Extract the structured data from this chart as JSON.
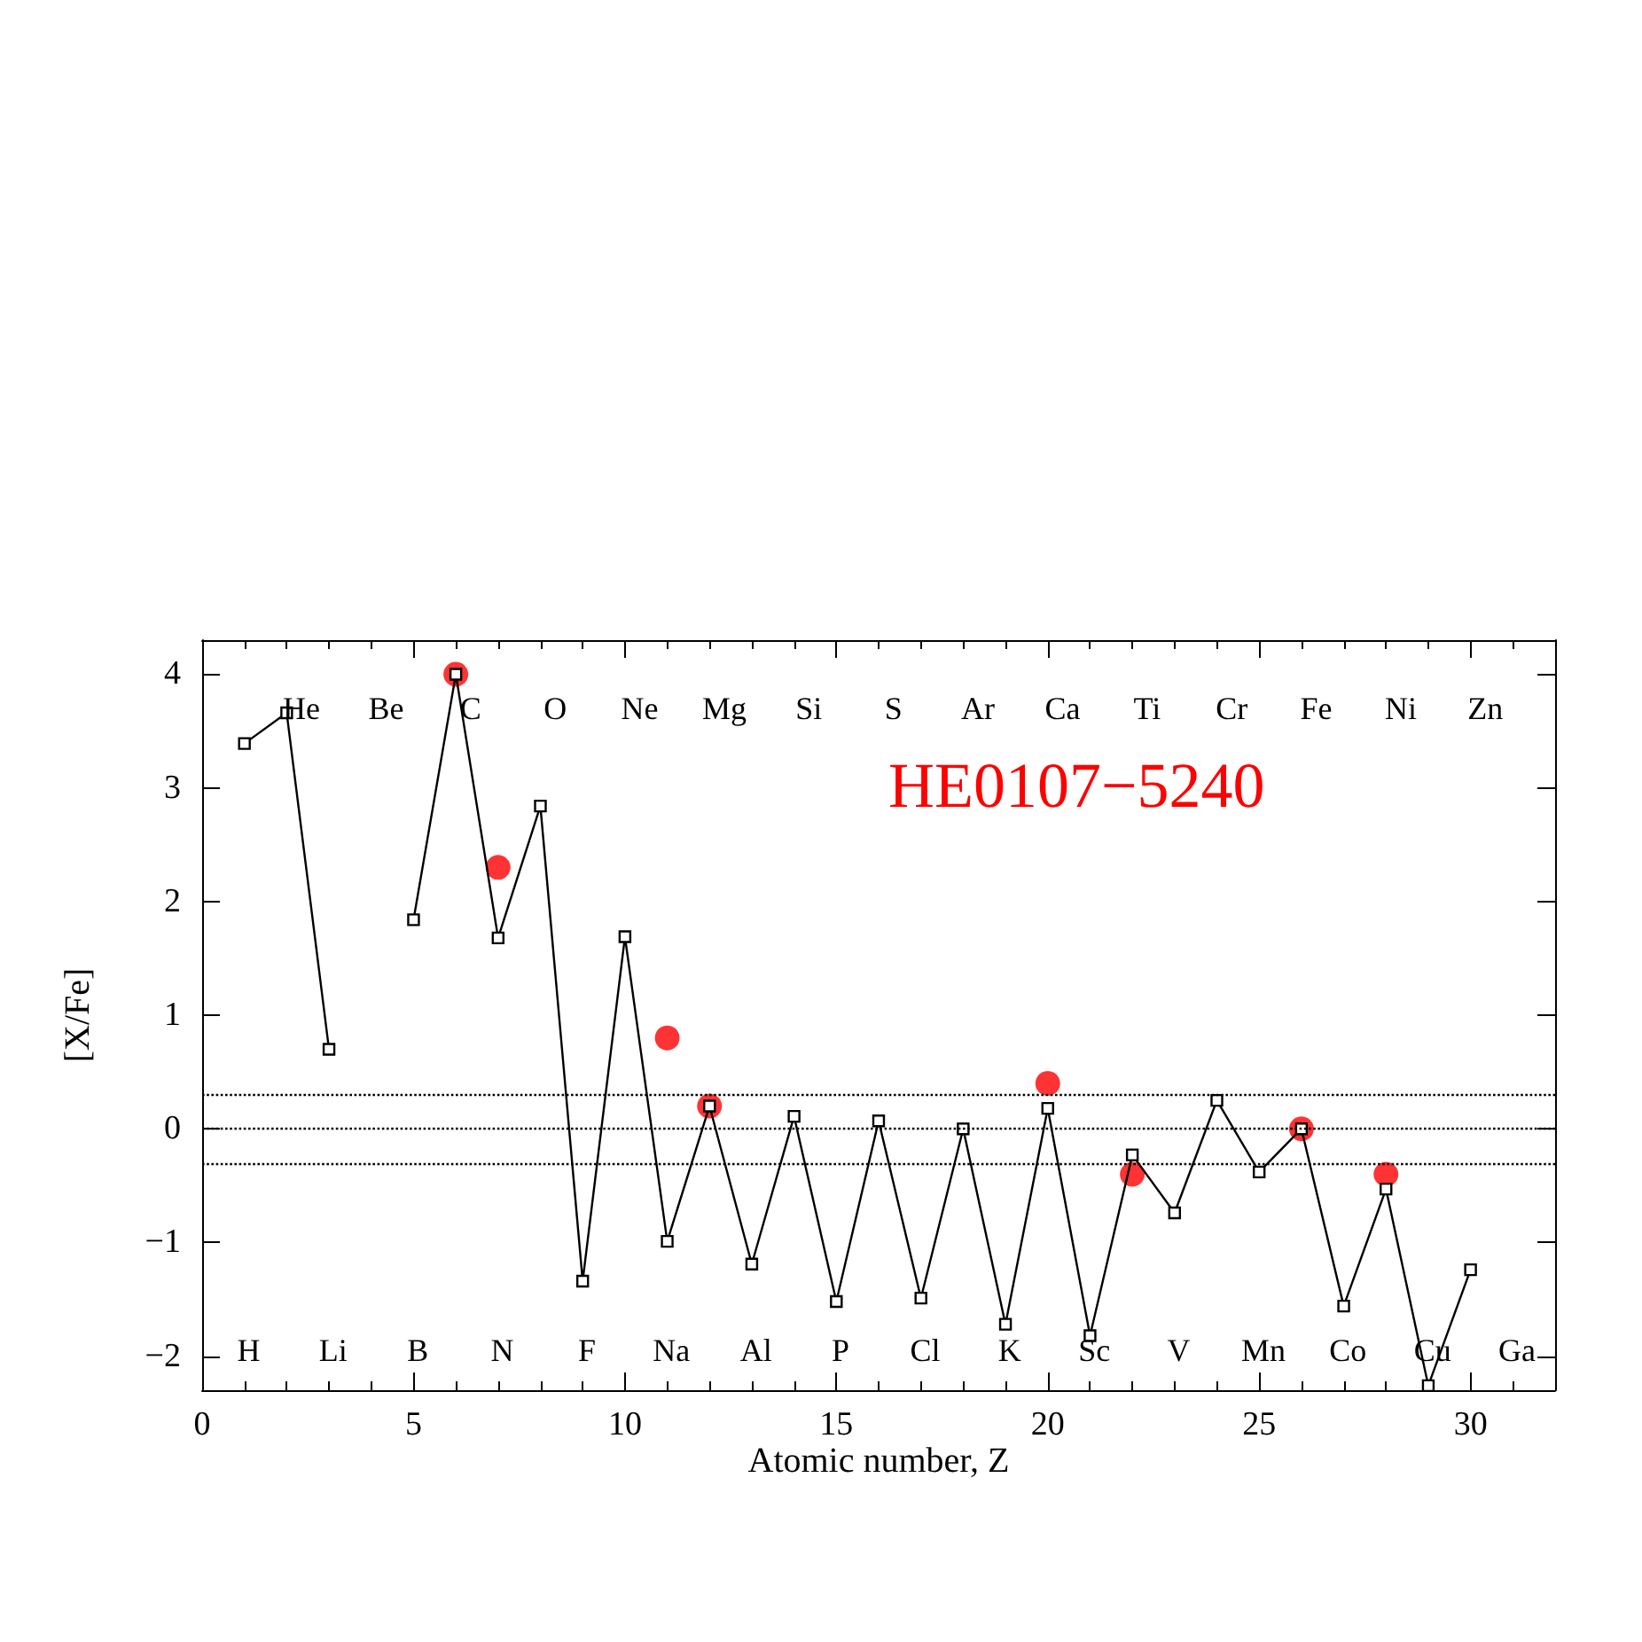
{
  "chart_data": {
    "type": "line",
    "title": "HE0107−5240",
    "xlabel": "Atomic number, Z",
    "ylabel": "[X/Fe]",
    "xlim": [
      0,
      32
    ],
    "xticks": [
      0,
      5,
      10,
      15,
      20,
      25,
      30
    ],
    "ylim": [
      -2.3,
      4.3
    ],
    "yticks": [
      -2,
      -1,
      0,
      1,
      2,
      3,
      4
    ],
    "grid": false,
    "series": [
      {
        "color": "#000000",
        "marker": "square",
        "line_style": "solid",
        "x": [
          1,
          2,
          3,
          4,
          5,
          6,
          7,
          8,
          9,
          10,
          11,
          12,
          13,
          14,
          15,
          16,
          17,
          18,
          19,
          20,
          21,
          22,
          23,
          24,
          25,
          26,
          27,
          28,
          29,
          30
        ],
        "values": [
          3.39,
          3.66,
          0.7,
          null,
          1.84,
          4.0,
          1.68,
          2.84,
          -1.34,
          1.69,
          -0.99,
          0.2,
          -1.19,
          0.11,
          -1.52,
          0.07,
          -1.49,
          0.0,
          -1.72,
          0.18,
          -1.82,
          -0.23,
          -0.74,
          0.25,
          -0.38,
          0.0,
          -1.56,
          -0.53,
          -2.26,
          -1.24
        ]
      },
      {
        "type": "scatter",
        "color": "#ff0000",
        "marker": "circle",
        "x": [
          6,
          7,
          11,
          12,
          20,
          22,
          26,
          28
        ],
        "values": [
          4.0,
          2.3,
          0.8,
          0.2,
          0.4,
          -0.4,
          0.0,
          -0.4
        ]
      }
    ],
    "ref_lines": [
      {
        "axis": "y",
        "value": 0.3,
        "line_style": "dotted"
      },
      {
        "axis": "y",
        "value": 0,
        "line_style": "dotted"
      },
      {
        "axis": "y",
        "value": -0.3,
        "line_style": "dotted"
      }
    ],
    "annotations": [
      "H",
      "He",
      "Li",
      "Be",
      "B",
      "C",
      "N",
      "O",
      "F",
      "Ne",
      "Na",
      "Mg",
      "Al",
      "Si",
      "P",
      "S",
      "Cl",
      "Ar",
      "K",
      "Ca",
      "Sc",
      "Ti",
      "V",
      "Cr",
      "Mn",
      "Fe",
      "Co",
      "Ni",
      "Cu",
      "Zn",
      "Ga"
    ]
  }
}
